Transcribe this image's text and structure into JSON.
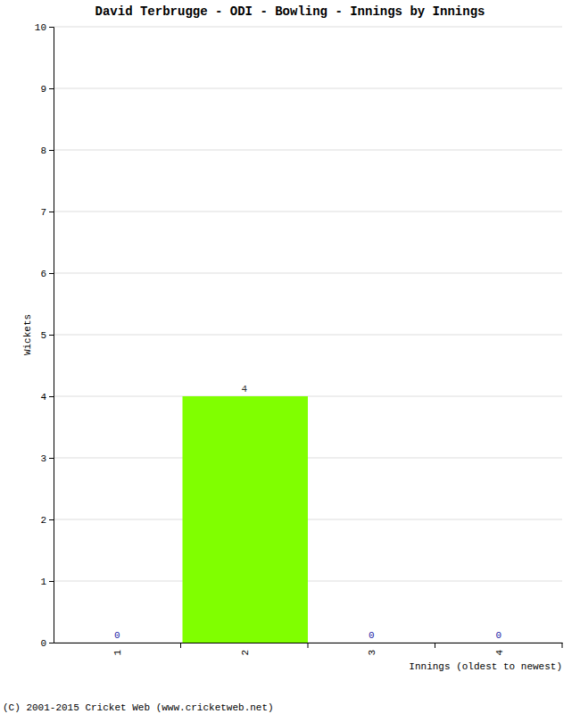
{
  "chart_data": {
    "type": "bar",
    "title": "David Terbrugge - ODI - Bowling - Innings by Innings",
    "x_label": "Innings (oldest to newest)",
    "y_label": "Wickets",
    "footer": "(C) 2001-2015 Cricket Web (www.cricketweb.net)",
    "categories": [
      "1",
      "2",
      "3",
      "4"
    ],
    "values": [
      0,
      4,
      0,
      0
    ],
    "color": "#80ff00",
    "ylim": [
      0,
      10
    ],
    "yticks": [
      0,
      1,
      2,
      3,
      4,
      5,
      6,
      7,
      8,
      9,
      10
    ],
    "grid": true,
    "data_labels": true
  }
}
